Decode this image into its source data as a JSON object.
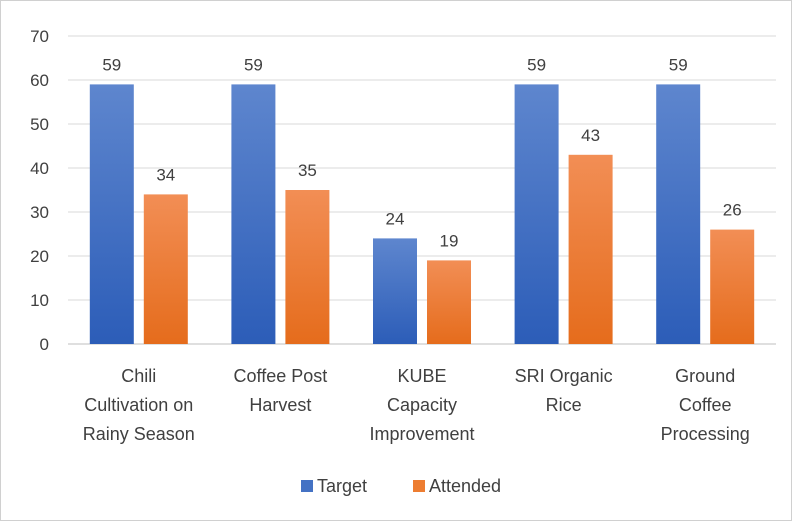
{
  "chart_data": {
    "type": "bar",
    "title": "",
    "xlabel": "",
    "ylabel": "",
    "ylim": [
      0,
      70
    ],
    "yticks": [
      0,
      10,
      20,
      30,
      40,
      50,
      60,
      70
    ],
    "grid": true,
    "legend_position": "bottom",
    "categories": [
      [
        "Chili",
        "Cultivation on",
        "Rainy Season"
      ],
      [
        "Coffee Post",
        "Harvest"
      ],
      [
        "KUBE",
        "Capacity",
        "Improvement"
      ],
      [
        "SRI Organic",
        "Rice"
      ],
      [
        "Ground",
        "Coffee",
        "Processing"
      ]
    ],
    "series": [
      {
        "name": "Target",
        "color": "#4472C4",
        "values": [
          59,
          59,
          24,
          59,
          59
        ]
      },
      {
        "name": "Attended",
        "color": "#ED7D31",
        "values": [
          34,
          35,
          19,
          43,
          26
        ]
      }
    ]
  }
}
